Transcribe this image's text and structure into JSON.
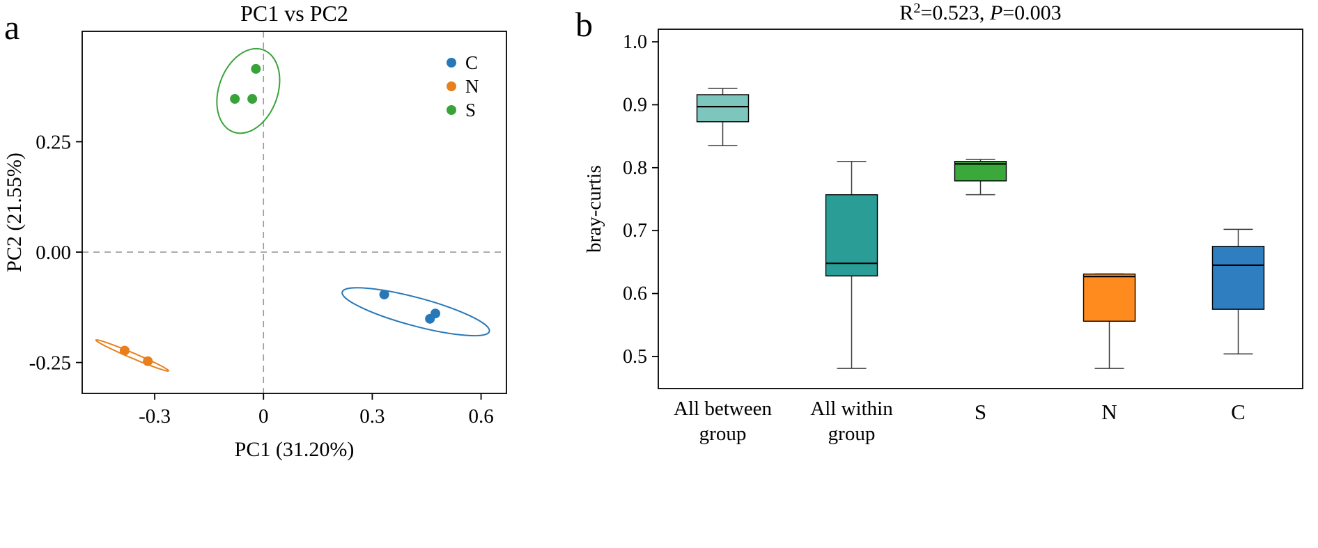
{
  "panels": {
    "a": {
      "label": "a"
    },
    "b": {
      "label": "b"
    }
  },
  "chart_data": [
    {
      "id": "pca",
      "type": "scatter",
      "title": "PC1 vs PC2",
      "xlabel": "PC1 (31.20%)",
      "ylabel": "PC2 (21.55%)",
      "xlim": [
        -0.5,
        0.67
      ],
      "ylim": [
        -0.32,
        0.5
      ],
      "xticks": [
        -0.3,
        0,
        0.3,
        0.6
      ],
      "xtick_labels": [
        "-0.3",
        "0",
        "0.3",
        "0.6"
      ],
      "yticks": [
        -0.25,
        0,
        0.25
      ],
      "ytick_labels": [
        "-0.25",
        "0.00",
        "0.25"
      ],
      "zero_lines": true,
      "grid": false,
      "legend_position": "upper right",
      "series": [
        {
          "name": "C",
          "color": "#2878b8",
          "points": [
            [
              0.333,
              -0.096
            ],
            [
              0.459,
              -0.151
            ],
            [
              0.474,
              -0.139
            ]
          ],
          "ellipse": {
            "cx": 0.42,
            "cy": -0.135,
            "rx": 0.21,
            "ry": 0.032,
            "rot": 15
          }
        },
        {
          "name": "N",
          "color": "#e87f1a",
          "points": [
            [
              -0.383,
              -0.223
            ],
            [
              -0.319,
              -0.247
            ]
          ],
          "ellipse": {
            "cx": -0.362,
            "cy": -0.234,
            "rx": 0.109,
            "ry": 0.006,
            "rot": 23
          }
        },
        {
          "name": "S",
          "color": "#39a339",
          "points": [
            [
              -0.079,
              0.347
            ],
            [
              -0.031,
              0.347
            ],
            [
              -0.021,
              0.415
            ]
          ],
          "ellipse": {
            "cx": -0.042,
            "cy": 0.365,
            "rx": 0.081,
            "ry": 0.099,
            "rot": 20
          }
        }
      ]
    },
    {
      "id": "braycurtis",
      "type": "box",
      "title_text": "R²=0.523, P=0.003",
      "title_parts": [
        {
          "t": "R"
        },
        {
          "t": "2",
          "sup": true
        },
        {
          "t": "=0.523, "
        },
        {
          "t": "P",
          "italic": true
        },
        {
          "t": "=0.003"
        }
      ],
      "ylabel": "bray-curtis",
      "ylim": [
        0.449,
        1.02
      ],
      "yticks": [
        0.5,
        0.6,
        0.7,
        0.8,
        0.9,
        1.0
      ],
      "ytick_labels": [
        "0.5",
        "0.6",
        "0.7",
        "0.8",
        "0.9",
        "1.0"
      ],
      "categories": [
        [
          "All between",
          "group"
        ],
        [
          "All within",
          "group"
        ],
        [
          "S"
        ],
        [
          "N"
        ],
        [
          "C"
        ]
      ],
      "boxes": [
        {
          "label": "All between group",
          "color": "#7cc6bd",
          "low": 0.835,
          "q1": 0.873,
          "median": 0.897,
          "q3": 0.916,
          "high": 0.926
        },
        {
          "label": "All within group",
          "color": "#2a9d96",
          "low": 0.481,
          "q1": 0.628,
          "median": 0.648,
          "q3": 0.757,
          "high": 0.81
        },
        {
          "label": "S",
          "color": "#3aa83a",
          "low": 0.757,
          "q1": 0.779,
          "median": 0.806,
          "q3": 0.81,
          "high": 0.813
        },
        {
          "label": "N",
          "color": "#ff8b1f",
          "low": 0.481,
          "q1": 0.556,
          "median": 0.627,
          "q3": 0.631,
          "high": 0.631
        },
        {
          "label": "C",
          "color": "#2f7ec0",
          "low": 0.504,
          "q1": 0.575,
          "median": 0.645,
          "q3": 0.675,
          "high": 0.702
        }
      ]
    }
  ]
}
